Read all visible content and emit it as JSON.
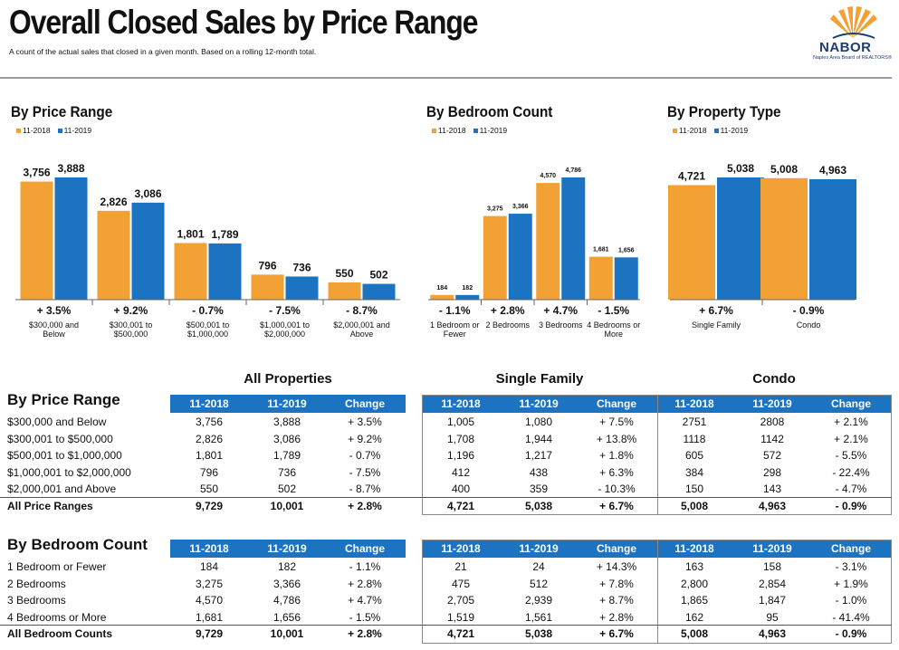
{
  "title": "Overall Closed Sales by Price Range",
  "subtitle": "A count of the actual sales that closed in a given month. Based on a rolling 12-month total.",
  "logo": {
    "name": "NABOR",
    "tagline": "Naples Area Board of REALTORS®"
  },
  "legend": [
    "11-2018",
    "11-2019"
  ],
  "colors": {
    "orange": "#f2a134",
    "blue": "#1b73c2"
  },
  "chart_data": [
    {
      "type": "bar",
      "title": "By Price Range",
      "categories": [
        "$300,000 and Below",
        "$300,001 to $500,000",
        "$500,001 to $1,000,000",
        "$1,000,001 to $2,000,000",
        "$2,000,001 and Above"
      ],
      "category_lines": [
        [
          "$300,000 and",
          "Below"
        ],
        [
          "$300,001 to",
          "$500,000"
        ],
        [
          "$500,001 to",
          "$1,000,000"
        ],
        [
          "$1,000,001 to",
          "$2,000,000"
        ],
        [
          "$2,000,001 and",
          "Above"
        ]
      ],
      "series": [
        {
          "name": "11-2018",
          "values": [
            3756,
            2826,
            1801,
            796,
            550
          ],
          "labels": [
            "3,756",
            "2,826",
            "1,801",
            "796",
            "550"
          ]
        },
        {
          "name": "11-2019",
          "values": [
            3888,
            3086,
            1789,
            736,
            502
          ],
          "labels": [
            "3,888",
            "3,086",
            "1,789",
            "736",
            "502"
          ]
        }
      ],
      "changes": [
        "+ 3.5%",
        "+ 9.2%",
        "- 0.7%",
        "- 7.5%",
        "- 8.7%"
      ]
    },
    {
      "type": "bar",
      "title": "By Bedroom Count",
      "categories": [
        "1 Bedroom or Fewer",
        "2 Bedrooms",
        "3 Bedrooms",
        "4 Bedrooms or More"
      ],
      "category_lines": [
        [
          "1 Bedroom or",
          "Fewer"
        ],
        [
          "2 Bedrooms"
        ],
        [
          "3 Bedrooms"
        ],
        [
          "4 Bedrooms or",
          "More"
        ]
      ],
      "series": [
        {
          "name": "11-2018",
          "values": [
            184,
            3275,
            4570,
            1681
          ],
          "labels": [
            "184",
            "3,275",
            "4,570",
            "1,681"
          ]
        },
        {
          "name": "11-2019",
          "values": [
            182,
            3366,
            4786,
            1656
          ],
          "labels": [
            "182",
            "3,366",
            "4,786",
            "1,656"
          ]
        }
      ],
      "changes": [
        "- 1.1%",
        "+ 2.8%",
        "+ 4.7%",
        "- 1.5%"
      ]
    },
    {
      "type": "bar",
      "title": "By Property Type",
      "categories": [
        "Single Family",
        "Condo"
      ],
      "category_lines": [
        [
          "Single Family"
        ],
        [
          "Condo"
        ]
      ],
      "series": [
        {
          "name": "11-2018",
          "values": [
            4721,
            5008
          ],
          "labels": [
            "4,721",
            "5,008"
          ]
        },
        {
          "name": "11-2019",
          "values": [
            5038,
            4963
          ],
          "labels": [
            "5,038",
            "4,963"
          ]
        }
      ],
      "changes": [
        "+ 6.7%",
        "- 0.9%"
      ]
    }
  ],
  "tables": {
    "group_titles": [
      "All Properties",
      "Single Family",
      "Condo"
    ],
    "columns": [
      "11-2018",
      "11-2019",
      "Change"
    ],
    "price": {
      "title": "By Price Range",
      "rows": [
        [
          "$300,000 and Below",
          "3,756",
          "3,888",
          "+ 3.5%",
          "1,005",
          "1,080",
          "+ 7.5%",
          "2751",
          "2808",
          "+ 2.1%"
        ],
        [
          "$300,001 to $500,000",
          "2,826",
          "3,086",
          "+ 9.2%",
          "1,708",
          "1,944",
          "+ 13.8%",
          "1118",
          "1142",
          "+ 2.1%"
        ],
        [
          "$500,001 to $1,000,000",
          "1,801",
          "1,789",
          "- 0.7%",
          "1,196",
          "1,217",
          "+ 1.8%",
          "605",
          "572",
          "- 5.5%"
        ],
        [
          "$1,000,001 to $2,000,000",
          "796",
          "736",
          "- 7.5%",
          "412",
          "438",
          "+ 6.3%",
          "384",
          "298",
          "- 22.4%"
        ],
        [
          "$2,000,001 and Above",
          "550",
          "502",
          "- 8.7%",
          "400",
          "359",
          "- 10.3%",
          "150",
          "143",
          "- 4.7%"
        ]
      ],
      "total": [
        "All Price Ranges",
        "9,729",
        "10,001",
        "+ 2.8%",
        "4,721",
        "5,038",
        "+ 6.7%",
        "5,008",
        "4,963",
        "- 0.9%"
      ]
    },
    "bedroom": {
      "title": "By Bedroom Count",
      "rows": [
        [
          "1 Bedroom or Fewer",
          "184",
          "182",
          "- 1.1%",
          "21",
          "24",
          "+ 14.3%",
          "163",
          "158",
          "- 3.1%"
        ],
        [
          "2 Bedrooms",
          "3,275",
          "3,366",
          "+ 2.8%",
          "475",
          "512",
          "+ 7.8%",
          "2,800",
          "2,854",
          "+ 1.9%"
        ],
        [
          "3 Bedrooms",
          "4,570",
          "4,786",
          "+ 4.7%",
          "2,705",
          "2,939",
          "+ 8.7%",
          "1,865",
          "1,847",
          "- 1.0%"
        ],
        [
          "4 Bedrooms or More",
          "1,681",
          "1,656",
          "- 1.5%",
          "1,519",
          "1,561",
          "+ 2.8%",
          "162",
          "95",
          "- 41.4%"
        ]
      ],
      "total": [
        "All Bedroom Counts",
        "9,729",
        "10,001",
        "+ 2.8%",
        "4,721",
        "5,038",
        "+ 6.7%",
        "5,008",
        "4,963",
        "- 0.9%"
      ]
    }
  }
}
